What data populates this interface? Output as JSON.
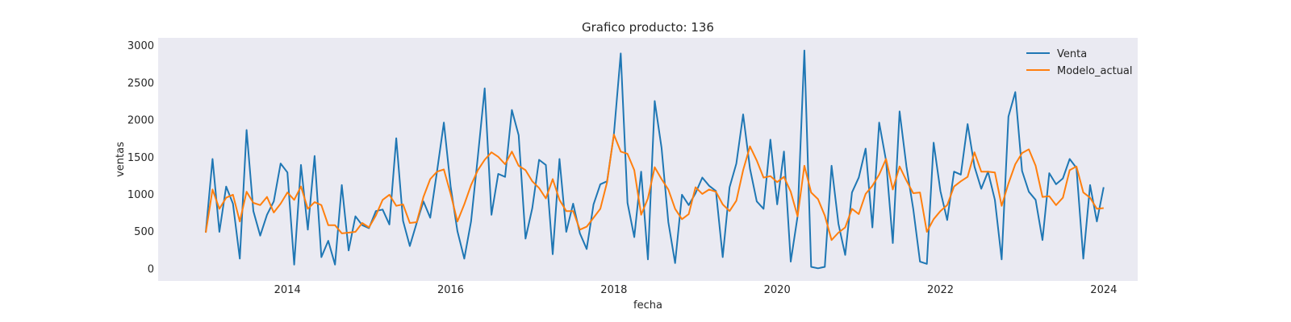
{
  "chart_data": {
    "type": "line",
    "title": "Grafico producto: 136",
    "xlabel": "fecha",
    "ylabel": "ventas",
    "x_start": "2013-01",
    "x_step": "month",
    "xlim": [
      "2012-06",
      "2024-06"
    ],
    "ylim": [
      -170,
      3100
    ],
    "x_ticks": [
      "2014",
      "2016",
      "2018",
      "2020",
      "2022",
      "2024"
    ],
    "y_ticks": [
      0,
      500,
      1000,
      1500,
      2000,
      2500,
      3000
    ],
    "grid": false,
    "legend": "top-right",
    "background": "#eaeaf2",
    "series": [
      {
        "name": "Venta",
        "color": "#1f77b4",
        "values": [
          480,
          1470,
          490,
          1100,
          870,
          130,
          1860,
          770,
          440,
          720,
          900,
          1410,
          1290,
          50,
          1390,
          520,
          1510,
          150,
          370,
          50,
          1120,
          240,
          700,
          580,
          540,
          770,
          790,
          590,
          1750,
          640,
          300,
          610,
          900,
          680,
          1310,
          1960,
          1100,
          500,
          130,
          630,
          1500,
          2420,
          720,
          1270,
          1230,
          2130,
          1790,
          400,
          810,
          1460,
          1390,
          190,
          1470,
          490,
          870,
          470,
          260,
          860,
          1130,
          1170,
          1800,
          2890,
          880,
          420,
          1300,
          120,
          2250,
          1620,
          620,
          70,
          990,
          850,
          1010,
          1220,
          1110,
          1040,
          150,
          1090,
          1410,
          2070,
          1340,
          900,
          800,
          1730,
          860,
          1570,
          90,
          700,
          2930,
          20,
          0,
          20,
          1380,
          600,
          180,
          1020,
          1220,
          1610,
          550,
          1960,
          1450,
          340,
          2110,
          1370,
          800,
          90,
          60,
          1690,
          1040,
          650,
          1300,
          1260,
          1940,
          1370,
          1070,
          1300,
          920,
          120,
          2040,
          2370,
          1310,
          1030,
          920,
          380,
          1280,
          1130,
          1210,
          1470,
          1350,
          130,
          1120,
          630,
          1090
        ]
      },
      {
        "name": "Modelo_actual",
        "color": "#ff7f0e",
        "values": [
          480,
          1060,
          800,
          950,
          990,
          630,
          1030,
          880,
          850,
          960,
          750,
          870,
          1020,
          920,
          1100,
          800,
          890,
          850,
          580,
          580,
          470,
          480,
          490,
          610,
          550,
          710,
          920,
          990,
          840,
          860,
          610,
          620,
          960,
          1200,
          1300,
          1330,
          1000,
          630,
          860,
          1120,
          1320,
          1460,
          1560,
          1500,
          1400,
          1570,
          1380,
          1320,
          1170,
          1080,
          940,
          1200,
          920,
          770,
          770,
          520,
          560,
          680,
          800,
          1160,
          1800,
          1570,
          1540,
          1320,
          720,
          940,
          1360,
          1200,
          1060,
          800,
          660,
          730,
          1090,
          1000,
          1060,
          1030,
          860,
          770,
          910,
          1320,
          1640,
          1450,
          1220,
          1240,
          1160,
          1230,
          1030,
          700,
          1380,
          1020,
          930,
          710,
          380,
          480,
          550,
          800,
          730,
          1000,
          1110,
          1260,
          1470,
          1060,
          1370,
          1180,
          1010,
          1020,
          490,
          660,
          770,
          850,
          1100,
          1170,
          1230,
          1560,
          1300,
          1300,
          1290,
          840,
          1140,
          1400,
          1550,
          1600,
          1380,
          960,
          970,
          850,
          950,
          1320,
          1370,
          1020,
          950,
          800,
          810
        ]
      }
    ]
  }
}
